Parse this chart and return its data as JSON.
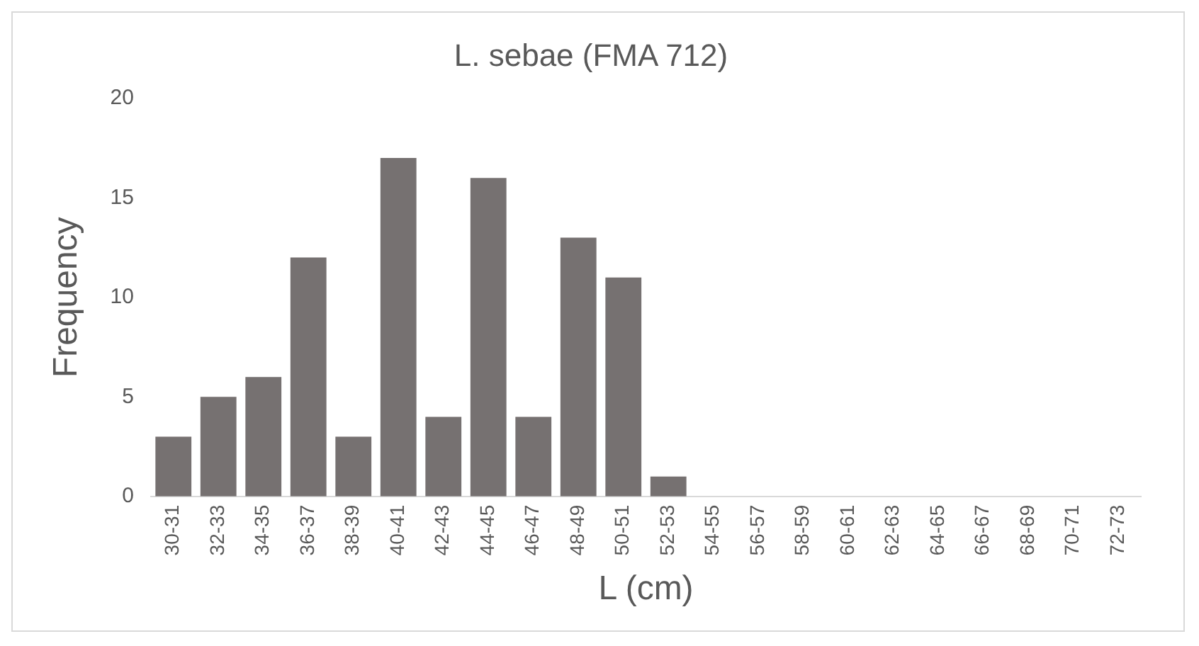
{
  "chart_data": {
    "type": "bar",
    "title": "L. sebae (FMA 712)",
    "xlabel": "L (cm)",
    "ylabel": "Frequency",
    "categories": [
      "30-31",
      "32-33",
      "34-35",
      "36-37",
      "38-39",
      "40-41",
      "42-43",
      "44-45",
      "46-47",
      "48-49",
      "50-51",
      "52-53",
      "54-55",
      "56-57",
      "58-59",
      "60-61",
      "62-63",
      "64-65",
      "66-67",
      "68-69",
      "70-71",
      "72-73"
    ],
    "values": [
      3,
      5,
      6,
      12,
      3,
      17,
      4,
      16,
      4,
      13,
      11,
      1,
      0,
      0,
      0,
      0,
      0,
      0,
      0,
      0,
      0,
      0
    ],
    "color": "#767171",
    "ylim": [
      0,
      20
    ],
    "yticks": [
      0,
      5,
      10,
      15,
      20
    ],
    "grid": false,
    "legend": false
  }
}
